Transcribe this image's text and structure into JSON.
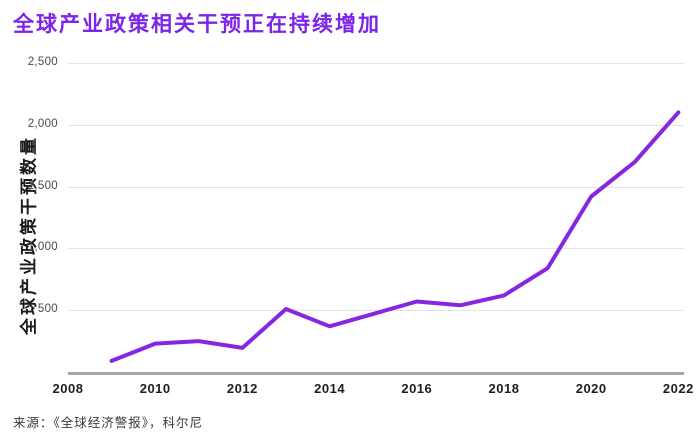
{
  "header": {
    "title": "全球产业政策相关干预正在持续增加",
    "title_color": "#7C24E8"
  },
  "chart": {
    "y_axis_label": "全球产业政策干预数量",
    "source": "来源：《全球经济警报》，科尔尼"
  },
  "colors": {
    "accent_purple": "#7C24E8",
    "line_purple": "#8626E3",
    "gridline": "#E2E2E2",
    "axis_baseline": "#A6A6A6"
  },
  "chart_data": {
    "type": "line",
    "title": "全球产业政策相关干预正在持续增加",
    "xlabel": "",
    "ylabel": "全球产业政策干预数量",
    "x": [
      2009,
      2010,
      2011,
      2012,
      2013,
      2014,
      2015,
      2016,
      2017,
      2018,
      2019,
      2020,
      2021,
      2022
    ],
    "values": [
      90,
      230,
      250,
      195,
      510,
      370,
      470,
      570,
      540,
      620,
      840,
      1420,
      1700,
      2100
    ],
    "xticks": [
      2008,
      2010,
      2012,
      2014,
      2016,
      2018,
      2020,
      2022
    ],
    "yticks": [
      500,
      1000,
      1500,
      2000,
      2500
    ],
    "xlim": [
      2008,
      2022.2
    ],
    "ylim": [
      0,
      2500
    ],
    "grid": "horizontal-only",
    "legend": "none",
    "line_color": "#8626E3",
    "source": "来源：《全球经济警报》，科尔尼"
  }
}
